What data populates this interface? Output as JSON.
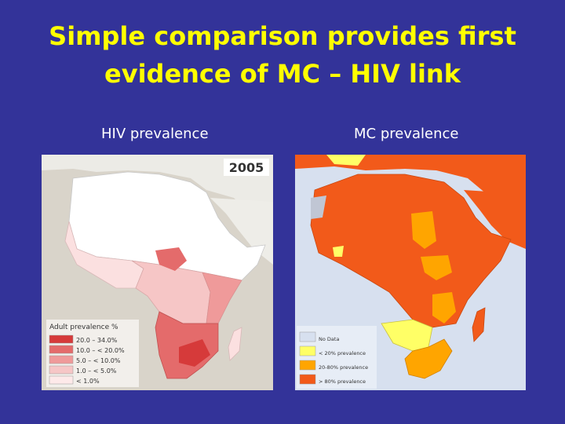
{
  "slide": {
    "title_line1": "Simple comparison provides first",
    "title_line2": "evidence of MC – HIV link",
    "title_color": "#ffff00",
    "background": "#333399"
  },
  "hiv_panel": {
    "label": "HIV prevalence",
    "year": "2005",
    "legend_title": "Adult prevalence %",
    "legend": [
      {
        "text": "20.0 – 34.0%",
        "color": "#d63a3a"
      },
      {
        "text": "10.0 – < 20.0%",
        "color": "#e46b6b"
      },
      {
        "text": "5.0 – < 10.0%",
        "color": "#ef9a9a"
      },
      {
        "text": "1.0 – < 5.0%",
        "color": "#f6c6c6"
      },
      {
        "text": "< 1.0%",
        "color": "#fde9e9"
      }
    ]
  },
  "mc_panel": {
    "label": "MC prevalence",
    "legend": [
      {
        "text": "No Data",
        "color": "#d7e0ef"
      },
      {
        "text": "< 20% prevalence",
        "color": "#ffff66"
      },
      {
        "text": "20-80% prevalence",
        "color": "#ffa500"
      },
      {
        "text": "> 80% prevalence",
        "color": "#f25a1a"
      }
    ]
  }
}
